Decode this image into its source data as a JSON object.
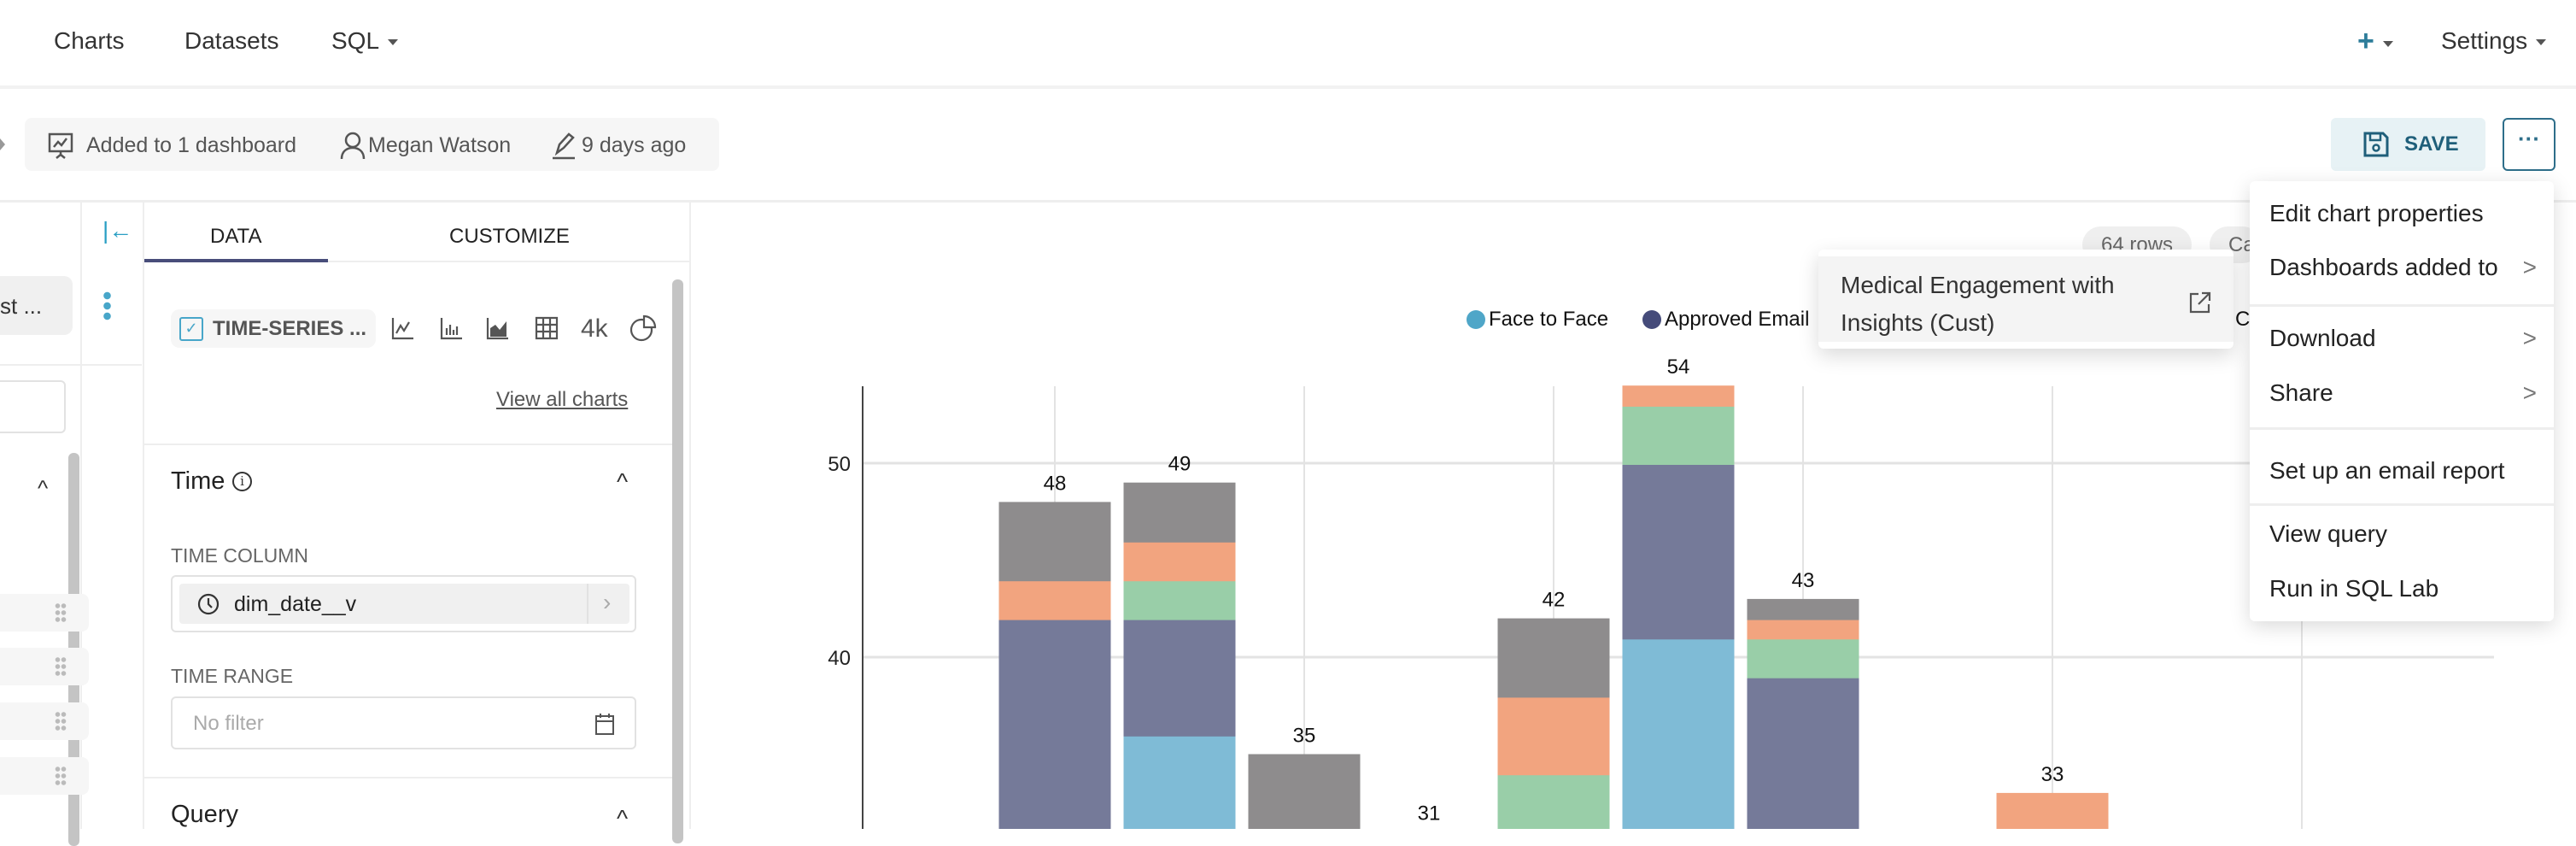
{
  "nav": {
    "charts": "Charts",
    "datasets": "Datasets",
    "sql": "SQL",
    "settings": "Settings"
  },
  "meta": {
    "dashboards": "Added to 1 dashboard",
    "owner": "Megan Watson",
    "modified": "9 days ago"
  },
  "actions": {
    "save": "SAVE",
    "more": "···"
  },
  "dataset_panel": {
    "dataset_name": "st ..."
  },
  "control_panel": {
    "tabs": [
      "DATA",
      "CUSTOMIZE"
    ],
    "viz_type": "TIME-SERIES ...",
    "quick_4k": "4k",
    "view_all": "View all charts",
    "time_section": "Time",
    "time_column_label": "TIME COLUMN",
    "time_column_value": "dim_date__v",
    "time_range_label": "TIME RANGE",
    "time_range_placeholder": "No filter",
    "query_section": "Query"
  },
  "chart_header": {
    "rows": "64 rows",
    "cached": "Ca"
  },
  "dashboard_popover": {
    "line1": "Medical Engagement with",
    "line2": "Insights (Cust)"
  },
  "menu": {
    "items": [
      "Edit chart properties",
      "Dashboards added to",
      "Download",
      "Share",
      "Set up an email report",
      "View query",
      "Run in SQL Lab"
    ],
    "submenu_chevron": ">"
  },
  "colors": {
    "accent": "#2a9fc4",
    "tab_underline": "#484d7a"
  },
  "chart_data": {
    "type": "bar",
    "stacked": true,
    "legend": [
      {
        "name": "Face to Face",
        "color": "#4fa6c8"
      },
      {
        "name": "Approved Email",
        "color": "#454b7a"
      },
      {
        "name": "C",
        "color": ""
      }
    ],
    "series_colors": [
      "#7fbbd6",
      "#757a99",
      "#99cea8",
      "#f2a47f",
      "#8e8c8d"
    ],
    "y_ticks": [
      "50",
      "40"
    ],
    "y_tick_values": [
      50,
      40
    ],
    "ylim_visible": [
      31.2,
      54
    ],
    "bars": [
      {
        "total": 48,
        "slot": 0,
        "segments": [
          {
            "s": 1,
            "from": 31.2,
            "to": 42
          },
          {
            "s": 3,
            "from": 42,
            "to": 44
          },
          {
            "s": 4,
            "from": 44,
            "to": 48
          }
        ]
      },
      {
        "total": 49,
        "slot": 1,
        "segments": [
          {
            "s": 0,
            "from": 31.2,
            "to": 36
          },
          {
            "s": 1,
            "from": 36,
            "to": 42
          },
          {
            "s": 2,
            "from": 42,
            "to": 44
          },
          {
            "s": 3,
            "from": 44,
            "to": 46
          },
          {
            "s": 4,
            "from": 46,
            "to": 49
          }
        ]
      },
      {
        "total": 35,
        "slot": 2,
        "segments": [
          {
            "s": 4,
            "from": 31.2,
            "to": 35
          }
        ]
      },
      {
        "total": 31,
        "slot": 3,
        "segments": []
      },
      {
        "total": 42,
        "slot": 4,
        "segments": [
          {
            "s": 2,
            "from": 31.2,
            "to": 34
          },
          {
            "s": 3,
            "from": 34,
            "to": 38
          },
          {
            "s": 4,
            "from": 38,
            "to": 42
          }
        ]
      },
      {
        "total": 54,
        "slot": 5,
        "segments": [
          {
            "s": 0,
            "from": 31.2,
            "to": 41
          },
          {
            "s": 1,
            "from": 41,
            "to": 50
          },
          {
            "s": 2,
            "from": 50,
            "to": 53
          },
          {
            "s": 3,
            "from": 53,
            "to": 54
          }
        ]
      },
      {
        "total": 43,
        "slot": 6,
        "segments": [
          {
            "s": 1,
            "from": 31.2,
            "to": 39
          },
          {
            "s": 2,
            "from": 39,
            "to": 41
          },
          {
            "s": 3,
            "from": 41,
            "to": 42
          },
          {
            "s": 4,
            "from": 42,
            "to": 43
          }
        ]
      },
      {
        "total": 33,
        "slot": 8,
        "segments": [
          {
            "s": 3,
            "from": 31.2,
            "to": 33
          }
        ]
      }
    ]
  }
}
